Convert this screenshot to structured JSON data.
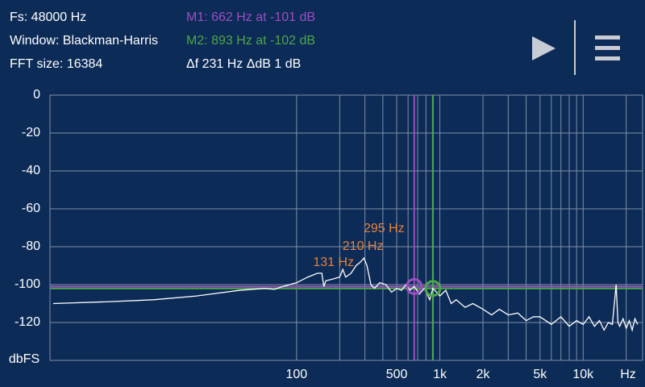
{
  "header": {
    "fs": "Fs: 48000 Hz",
    "window": "Window: Blackman-Harris",
    "fft_size": "FFT size: 16384",
    "delta": "Δf 231 Hz ΔdB 1 dB"
  },
  "chart_data": {
    "type": "line",
    "x_label": "Hz",
    "y_label": "dbFS",
    "log_x": true,
    "grid": true,
    "xlim": [
      1.9,
      26000
    ],
    "ylim": [
      -140,
      0
    ],
    "xticks": [
      100,
      500,
      {
        "value": 1000,
        "label": "1k"
      },
      {
        "value": 2000,
        "label": "2k"
      },
      {
        "value": 5000,
        "label": "5k"
      },
      {
        "value": 10000,
        "label": "10k"
      }
    ],
    "xgrid": [
      100,
      200,
      300,
      400,
      500,
      600,
      700,
      800,
      900,
      1000,
      2000,
      3000,
      4000,
      5000,
      6000,
      7000,
      8000,
      9000,
      10000,
      20000
    ],
    "yticks": [
      0,
      -20,
      -40,
      -60,
      -80,
      -100,
      -120
    ],
    "x": [
      2,
      5,
      10,
      20,
      40,
      60,
      70,
      80,
      100,
      120,
      140,
      150,
      155,
      160,
      180,
      200,
      210,
      220,
      240,
      260,
      280,
      295,
      310,
      330,
      350,
      380,
      420,
      460,
      500,
      540,
      580,
      620,
      662,
      720,
      780,
      850,
      893,
      950,
      1000,
      1100,
      1200,
      1300,
      1500,
      1700,
      2000,
      2300,
      2600,
      3000,
      3500,
      4000,
      4500,
      5000,
      6000,
      7000,
      8000,
      9000,
      10000,
      11000,
      12000,
      13000,
      14000,
      15000,
      16000,
      17000,
      17500,
      18000,
      19000,
      20000,
      21000,
      22000,
      23000,
      24000
    ],
    "series": [
      {
        "color": "#ffffff",
        "values": [
          -110,
          -109,
          -108,
          -106,
          -103,
          -102,
          -102.5,
          -101,
          -99,
          -96,
          -94,
          -94,
          -101,
          -98,
          -97,
          -96,
          -92,
          -96,
          -94,
          -90,
          -88,
          -86,
          -90,
          -100,
          -102,
          -99,
          -100,
          -104,
          -102,
          -103,
          -100,
          -103,
          -101,
          -105,
          -102,
          -108,
          -102,
          -104,
          -106,
          -103,
          -110,
          -108,
          -112,
          -110,
          -113,
          -116,
          -113,
          -116,
          -115,
          -119,
          -117,
          -117,
          -121,
          -117,
          -122,
          -119,
          -121,
          -117,
          -122,
          -119,
          -124,
          -120,
          -121,
          -100,
          -120,
          -122,
          -118,
          -123,
          -119,
          -124,
          -118,
          -121
        ]
      }
    ],
    "markers": [
      {
        "label": "M1: 662 Hz at -101 dB",
        "freq": 662,
        "db": -101,
        "color": "#9b4fc0"
      },
      {
        "label": "M2: 893 Hz at -102 dB",
        "freq": 893,
        "db": -102,
        "color": "#4fa64a"
      }
    ],
    "annotations": [
      {
        "text": "131 Hz",
        "freq": 131
      },
      {
        "text": "210 Hz",
        "freq": 210
      },
      {
        "text": "295 Hz",
        "freq": 295
      }
    ],
    "annotation_color": "#e8823a"
  }
}
